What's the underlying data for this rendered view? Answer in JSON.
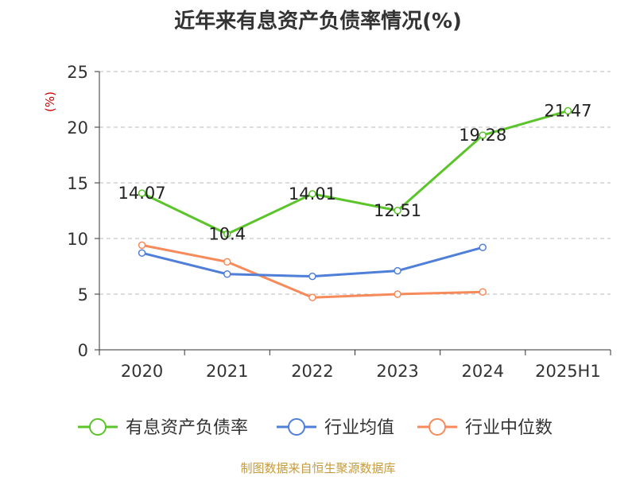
{
  "title": "近年来有息资产负债率情况(%)",
  "footer": "制图数据来自恒生聚源数据库",
  "chart_data": {
    "type": "line",
    "title": "近年来有息资产负债率情况(%)",
    "ylabel": "(%)",
    "xlabel": "",
    "categories": [
      "2020",
      "2021",
      "2022",
      "2023",
      "2024",
      "2025H1"
    ],
    "y_ticks": [
      "0",
      "5",
      "10",
      "15",
      "20",
      "25"
    ],
    "ylim": [
      0,
      25
    ],
    "grid": "horizontal dashed",
    "legend_position": "bottom",
    "series": [
      {
        "name": "有息资产负债率",
        "color": "#5cc42b",
        "values": [
          14.07,
          10.4,
          14.01,
          12.51,
          19.28,
          21.47
        ],
        "labels": [
          "14.07",
          "10.4",
          "14.01",
          "12.51",
          "19.28",
          "21.47"
        ]
      },
      {
        "name": "行业均值",
        "color": "#4f7fd8",
        "values": [
          8.7,
          6.8,
          6.6,
          7.1,
          9.2,
          null
        ]
      },
      {
        "name": "行业中位数",
        "color": "#f78a5a",
        "values": [
          9.4,
          7.9,
          4.7,
          5.0,
          5.2,
          null
        ]
      }
    ]
  }
}
